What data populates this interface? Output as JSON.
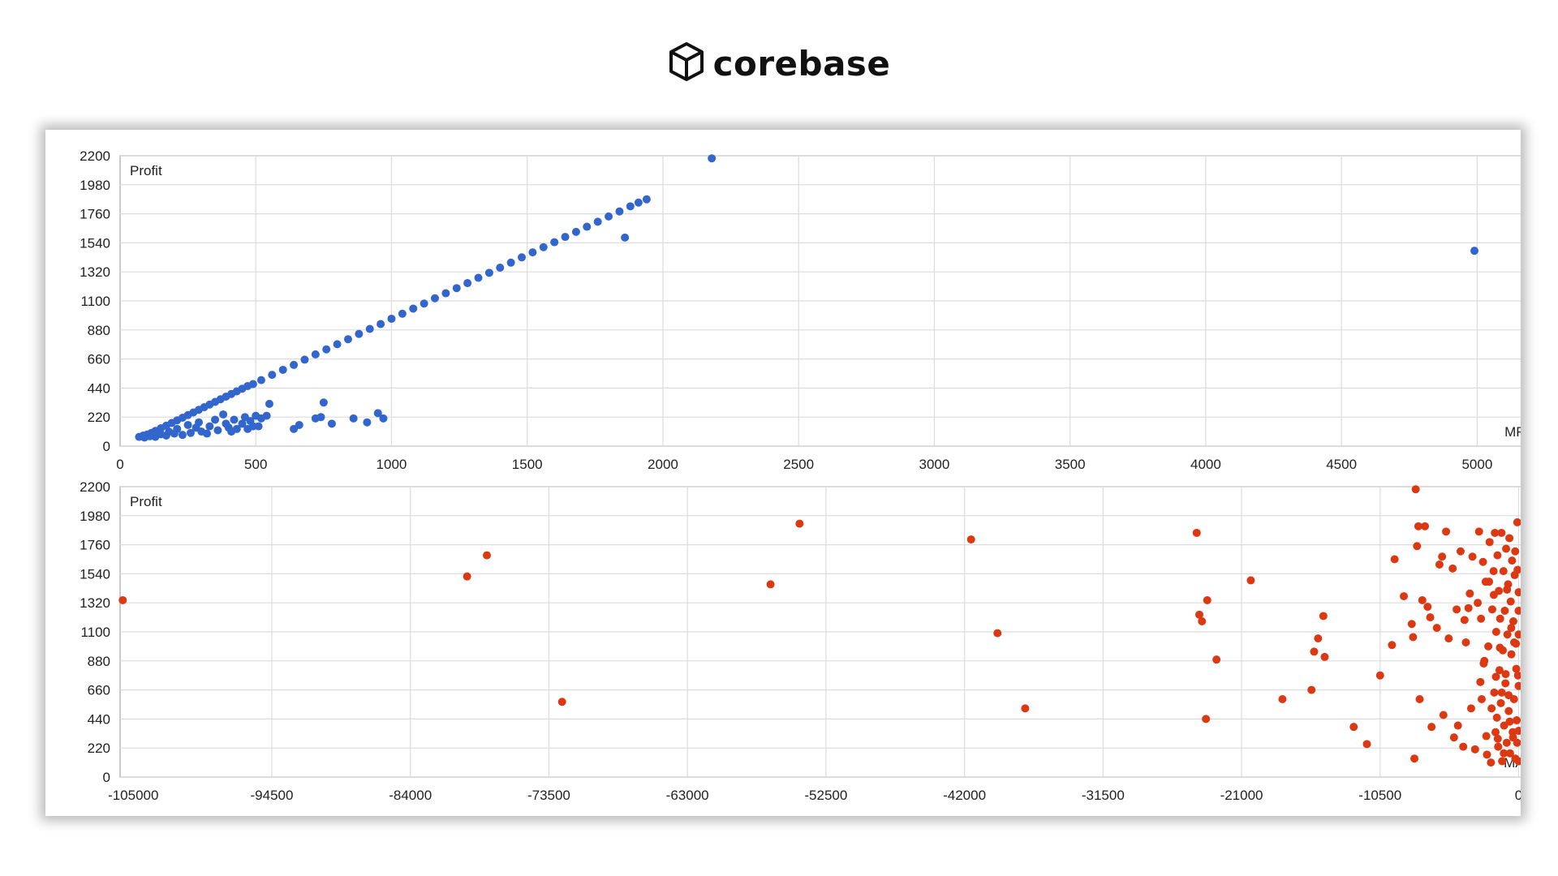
{
  "brand": {
    "name": "corebase",
    "icon": "cube-icon"
  },
  "chart_data": [
    {
      "type": "scatter",
      "title": "",
      "xlabel": "MFE",
      "ylabel": "Profit",
      "xlim": [
        0,
        5250
      ],
      "ylim": [
        0,
        2200
      ],
      "x_ticks": [
        "0",
        "500",
        "1000",
        "1500",
        "2000",
        "2500",
        "3000",
        "3500",
        "4000",
        "4500",
        "5000"
      ],
      "y_ticks": [
        "0",
        "220",
        "440",
        "660",
        "880",
        "1100",
        "1320",
        "1540",
        "1760",
        "1980",
        "2200"
      ],
      "grid": true,
      "color": "#3366CC",
      "series": [
        {
          "points": [
            [
              70,
              70
            ],
            [
              85,
              80
            ],
            [
              100,
              88
            ],
            [
              115,
              100
            ],
            [
              130,
              115
            ],
            [
              150,
              135
            ],
            [
              170,
              155
            ],
            [
              190,
              175
            ],
            [
              210,
              195
            ],
            [
              230,
              215
            ],
            [
              250,
              235
            ],
            [
              270,
              255
            ],
            [
              290,
              275
            ],
            [
              310,
              295
            ],
            [
              330,
              315
            ],
            [
              350,
              335
            ],
            [
              370,
              355
            ],
            [
              390,
              375
            ],
            [
              410,
              395
            ],
            [
              430,
              415
            ],
            [
              450,
              435
            ],
            [
              470,
              455
            ],
            [
              490,
              470
            ],
            [
              520,
              500
            ],
            [
              560,
              540
            ],
            [
              600,
              578
            ],
            [
              640,
              615
            ],
            [
              680,
              655
            ],
            [
              720,
              695
            ],
            [
              760,
              733
            ],
            [
              800,
              772
            ],
            [
              840,
              810
            ],
            [
              880,
              850
            ],
            [
              920,
              888
            ],
            [
              960,
              925
            ],
            [
              1000,
              965
            ],
            [
              1040,
              1003
            ],
            [
              1080,
              1042
            ],
            [
              1120,
              1080
            ],
            [
              1160,
              1120
            ],
            [
              1200,
              1158
            ],
            [
              1240,
              1197
            ],
            [
              1280,
              1235
            ],
            [
              1320,
              1275
            ],
            [
              1360,
              1313
            ],
            [
              1400,
              1352
            ],
            [
              1440,
              1390
            ],
            [
              1480,
              1430
            ],
            [
              1520,
              1468
            ],
            [
              1560,
              1507
            ],
            [
              1600,
              1545
            ],
            [
              1640,
              1585
            ],
            [
              1680,
              1623
            ],
            [
              1720,
              1662
            ],
            [
              1760,
              1700
            ],
            [
              1800,
              1740
            ],
            [
              1840,
              1778
            ],
            [
              1880,
              1817
            ],
            [
              1910,
              1845
            ],
            [
              1940,
              1870
            ],
            [
              90,
              65
            ],
            [
              110,
              75
            ],
            [
              130,
              70
            ],
            [
              150,
              90
            ],
            [
              170,
              80
            ],
            [
              180,
              110
            ],
            [
              200,
              95
            ],
            [
              210,
              130
            ],
            [
              230,
              85
            ],
            [
              250,
              160
            ],
            [
              260,
              100
            ],
            [
              280,
              140
            ],
            [
              290,
              180
            ],
            [
              300,
              110
            ],
            [
              320,
              95
            ],
            [
              330,
              150
            ],
            [
              350,
              200
            ],
            [
              360,
              120
            ],
            [
              380,
              240
            ],
            [
              390,
              170
            ],
            [
              400,
              140
            ],
            [
              410,
              110
            ],
            [
              420,
              200
            ],
            [
              430,
              130
            ],
            [
              450,
              170
            ],
            [
              460,
              220
            ],
            [
              470,
              130
            ],
            [
              480,
              190
            ],
            [
              490,
              150
            ],
            [
              500,
              230
            ],
            [
              510,
              150
            ],
            [
              520,
              210
            ],
            [
              540,
              230
            ],
            [
              550,
              320
            ],
            [
              640,
              130
            ],
            [
              660,
              160
            ],
            [
              720,
              210
            ],
            [
              740,
              220
            ],
            [
              750,
              330
            ],
            [
              780,
              170
            ],
            [
              860,
              210
            ],
            [
              910,
              180
            ],
            [
              950,
              250
            ],
            [
              970,
              210
            ],
            [
              1860,
              1580
            ],
            [
              2180,
              2180
            ],
            [
              4990,
              1480
            ]
          ]
        }
      ]
    },
    {
      "type": "scatter",
      "title": "",
      "xlabel": "MAE",
      "ylabel": "Profit",
      "xlim": [
        -106000,
        2000
      ],
      "ylim": [
        0,
        2200
      ],
      "x_ticks": [
        "-105000",
        "-94500",
        "-84000",
        "-73500",
        "-63000",
        "-52500",
        "-42000",
        "-31500",
        "-21000",
        "-10500",
        "0"
      ],
      "y_ticks": [
        "0",
        "220",
        "440",
        "660",
        "880",
        "1100",
        "1320",
        "1540",
        "1760",
        "1980",
        "2200"
      ],
      "grid": true,
      "color": "#DC3912",
      "series": [
        {
          "points": [
            [
              -105800,
              1340
            ],
            [
              -79700,
              1520
            ],
            [
              -78200,
              1680
            ],
            [
              -72500,
              570
            ],
            [
              -56700,
              1460
            ],
            [
              -54500,
              1920
            ],
            [
              -41500,
              1800
            ],
            [
              -39500,
              1090
            ],
            [
              -37400,
              520
            ],
            [
              -24400,
              1850
            ],
            [
              -24200,
              1230
            ],
            [
              -24000,
              1180
            ],
            [
              -23600,
              1340
            ],
            [
              -23700,
              440
            ],
            [
              -22900,
              890
            ],
            [
              -20300,
              1490
            ],
            [
              -17900,
              590
            ],
            [
              -15700,
              660
            ],
            [
              -15500,
              950
            ],
            [
              -15200,
              1050
            ],
            [
              -14800,
              1220
            ],
            [
              -14700,
              910
            ],
            [
              -12500,
              380
            ],
            [
              -11500,
              250
            ],
            [
              -10500,
              770
            ],
            [
              -9600,
              1000
            ],
            [
              -9400,
              1650
            ],
            [
              -8700,
              1370
            ],
            [
              -8100,
              1160
            ],
            [
              -8000,
              1060
            ],
            [
              -7900,
              140
            ],
            [
              -7800,
              2180
            ],
            [
              -7700,
              1750
            ],
            [
              -7600,
              1900
            ],
            [
              -7500,
              590
            ],
            [
              -7300,
              1340
            ],
            [
              -7100,
              1900
            ],
            [
              -6900,
              1290
            ],
            [
              -6700,
              1210
            ],
            [
              -6600,
              380
            ],
            [
              -6200,
              1130
            ],
            [
              -6000,
              1610
            ],
            [
              -5800,
              1670
            ],
            [
              -5700,
              470
            ],
            [
              -5500,
              1860
            ],
            [
              -5300,
              1050
            ],
            [
              -5000,
              1580
            ],
            [
              -4900,
              300
            ],
            [
              -4700,
              1270
            ],
            [
              -4600,
              390
            ],
            [
              -4400,
              1710
            ],
            [
              -4200,
              230
            ],
            [
              -4100,
              1190
            ],
            [
              -4000,
              1020
            ],
            [
              -3800,
              1280
            ],
            [
              -3700,
              1390
            ],
            [
              -3600,
              520
            ],
            [
              -3500,
              1670
            ],
            [
              -3300,
              210
            ],
            [
              -3100,
              1320
            ],
            [
              -3000,
              1860
            ],
            [
              -2900,
              720
            ],
            [
              -2800,
              590
            ],
            [
              -2700,
              1630
            ],
            [
              -2600,
              880
            ],
            [
              -2500,
              1480
            ],
            [
              -2400,
              170
            ],
            [
              -2300,
              990
            ],
            [
              -2200,
              1780
            ],
            [
              -2100,
              110
            ],
            [
              -2000,
              1270
            ],
            [
              -1900,
              1560
            ],
            [
              -1850,
              640
            ],
            [
              -1800,
              1850
            ],
            [
              -1750,
              340
            ],
            [
              -1700,
              1100
            ],
            [
              -1650,
              450
            ],
            [
              -1600,
              1680
            ],
            [
              -1550,
              230
            ],
            [
              -1500,
              1410
            ],
            [
              -1450,
              810
            ],
            [
              -1400,
              1200
            ],
            [
              -1350,
              560
            ],
            [
              -1300,
              1850
            ],
            [
              -1250,
              120
            ],
            [
              -1200,
              960
            ],
            [
              -1150,
              1560
            ],
            [
              -1100,
              390
            ],
            [
              -1050,
              1260
            ],
            [
              -1000,
              710
            ],
            [
              -950,
              1730
            ],
            [
              -900,
              260
            ],
            [
              -850,
              1080
            ],
            [
              -800,
              1460
            ],
            [
              -750,
              500
            ],
            [
              -700,
              1810
            ],
            [
              -650,
              180
            ],
            [
              -600,
              1330
            ],
            [
              -550,
              930
            ],
            [
              -500,
              1640
            ],
            [
              -450,
              340
            ],
            [
              -400,
              1180
            ],
            [
              -350,
              590
            ],
            [
              -300,
              1530
            ],
            [
              -250,
              140
            ],
            [
              -200,
              1010
            ],
            [
              -150,
              430
            ],
            [
              -100,
              1930
            ],
            [
              -50,
              770
            ],
            [
              0,
              1260
            ],
            [
              0,
              1400
            ],
            [
              0,
              1080
            ],
            [
              0,
              690
            ],
            [
              0,
              350
            ],
            [
              0,
              120
            ],
            [
              -80,
              1570
            ],
            [
              -120,
              260
            ],
            [
              -180,
              820
            ],
            [
              -260,
              1710
            ],
            [
              -340,
              1020
            ],
            [
              -420,
              300
            ],
            [
              -560,
              1130
            ],
            [
              -680,
              420
            ],
            [
              -760,
              620
            ],
            [
              -880,
              1420
            ],
            [
              -980,
              780
            ],
            [
              -1120,
              180
            ],
            [
              -1280,
              640
            ],
            [
              -1420,
              980
            ],
            [
              -1580,
              290
            ],
            [
              -1720,
              760
            ],
            [
              -1880,
              1380
            ],
            [
              -2050,
              520
            ],
            [
              -2240,
              1480
            ],
            [
              -2450,
              310
            ],
            [
              -2650,
              860
            ],
            [
              -2850,
              1200
            ]
          ]
        }
      ]
    }
  ]
}
